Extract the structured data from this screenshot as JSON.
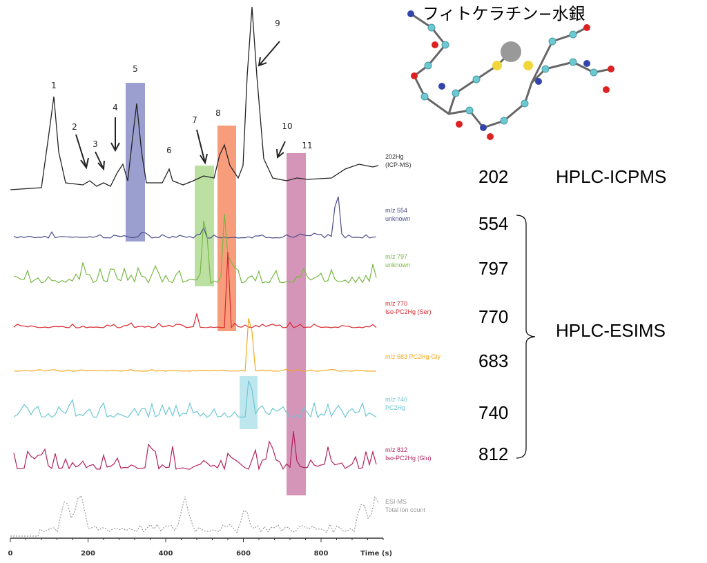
{
  "figure": {
    "peak_labels": [
      "1",
      "2",
      "3",
      "4",
      "5",
      "6",
      "7",
      "8",
      "9",
      "10",
      "11"
    ],
    "trace_labels": [
      {
        "line1": "202Hg",
        "line2": "(ICP-MS)"
      },
      {
        "line1": "m/z 554",
        "line2": "unknown"
      },
      {
        "line1": "m/z 797",
        "line2": "unknown"
      },
      {
        "line1": "m/z 770",
        "line2": "Iso-PC2Hg (Ser)"
      },
      {
        "line1": "m/z 683 PC2Hg-Gly"
      },
      {
        "line1": "m/z 740",
        "line2": "PC2Hg"
      },
      {
        "line1": "m/z 812",
        "line2": "Iso-PC2Hg (Glu)"
      },
      {
        "line1": "ESI-MS",
        "line2": "Total ion count"
      }
    ],
    "x_axis": {
      "ticks": [
        "0",
        "200",
        "400",
        "600",
        "800"
      ],
      "label": "Time (s)"
    }
  },
  "molecule": {
    "title": "フィトケラチン−水銀"
  },
  "annotations": {
    "icpms": {
      "mz": "202",
      "method": "HPLC-ICPMS"
    },
    "esims": {
      "mz": [
        "554",
        "797",
        "770",
        "683",
        "740",
        "812"
      ],
      "method": "HPLC-ESIMS"
    }
  }
}
